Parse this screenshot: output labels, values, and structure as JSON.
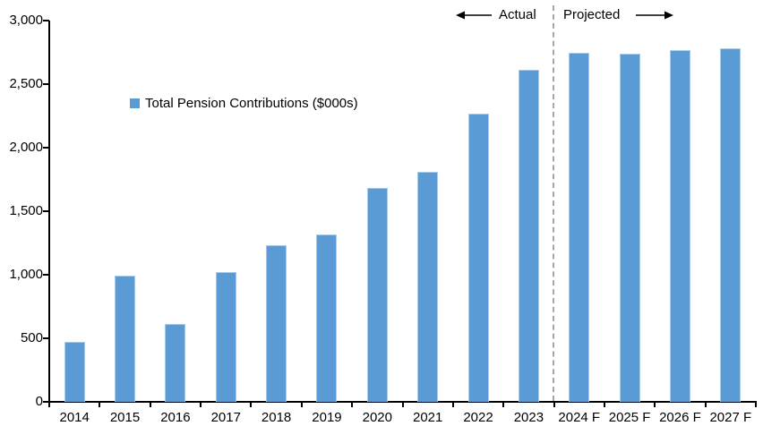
{
  "chart_data": {
    "type": "bar",
    "title": "",
    "legend": "Total Pension Contributions ($000s)",
    "categories": [
      "2014",
      "2015",
      "2016",
      "2017",
      "2018",
      "2019",
      "2020",
      "2021",
      "2022",
      "2023",
      "2024 F",
      "2025 F",
      "2026 F",
      "2027 F"
    ],
    "values": [
      470,
      990,
      610,
      1020,
      1230,
      1320,
      1680,
      1810,
      2270,
      2610,
      2750,
      2740,
      2765,
      2785
    ],
    "xlabel": "",
    "ylabel": "",
    "ylim": [
      0,
      3000
    ],
    "ytick_interval": 500,
    "ytick_labels": [
      "0",
      "500",
      "1,000",
      "1,500",
      "2,000",
      "2,500",
      "3,000"
    ],
    "grid": false,
    "legend_position": "upper-left-inside",
    "bar_color": "#5B9BD5",
    "bar_edge_color": "#A8CBEA",
    "axis_color": "#000000",
    "divider_color": "#A6A6A6",
    "divider_after_category_index": 9,
    "annotations": {
      "left_label": "Actual",
      "right_label": "Projected"
    }
  }
}
